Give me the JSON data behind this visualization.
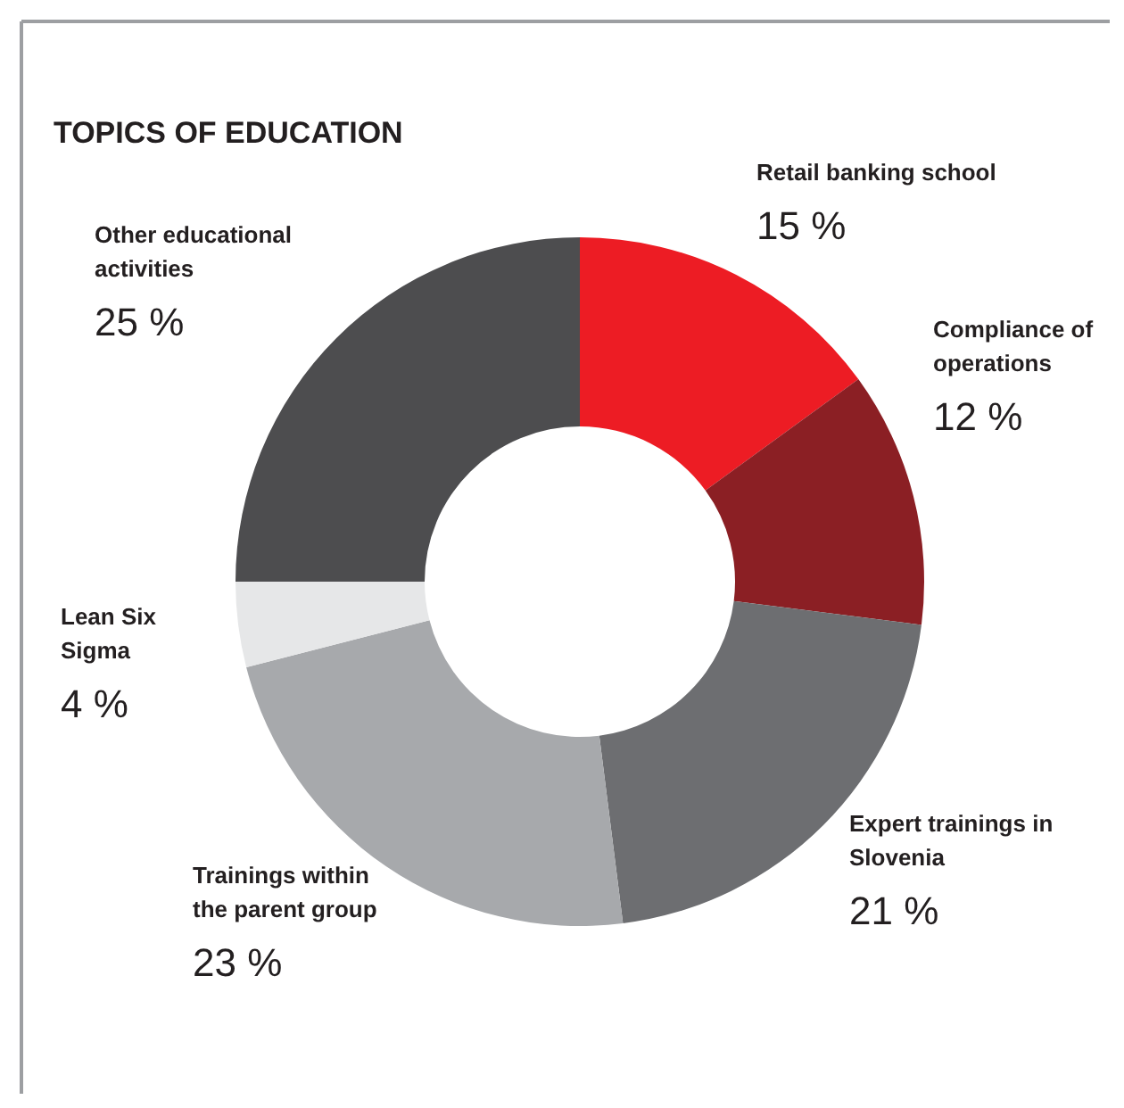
{
  "chart_data": {
    "type": "donut",
    "title": "TOPICS OF EDUCATION",
    "categories": [
      "Retail banking school",
      "Compliance of operations",
      "Expert trainings in Slovenia",
      "Trainings within the parent group",
      "Lean Six Sigma",
      "Other educational activities"
    ],
    "values": [
      15,
      12,
      21,
      23,
      4,
      25
    ],
    "value_labels": [
      "15 %",
      "12 %",
      "21 %",
      "23 %",
      "4 %",
      "25 %"
    ],
    "colors": [
      "#ed1c24",
      "#8b1f24",
      "#6d6e71",
      "#a7a9ac",
      "#e6e7e8",
      "#4d4d4f"
    ]
  }
}
